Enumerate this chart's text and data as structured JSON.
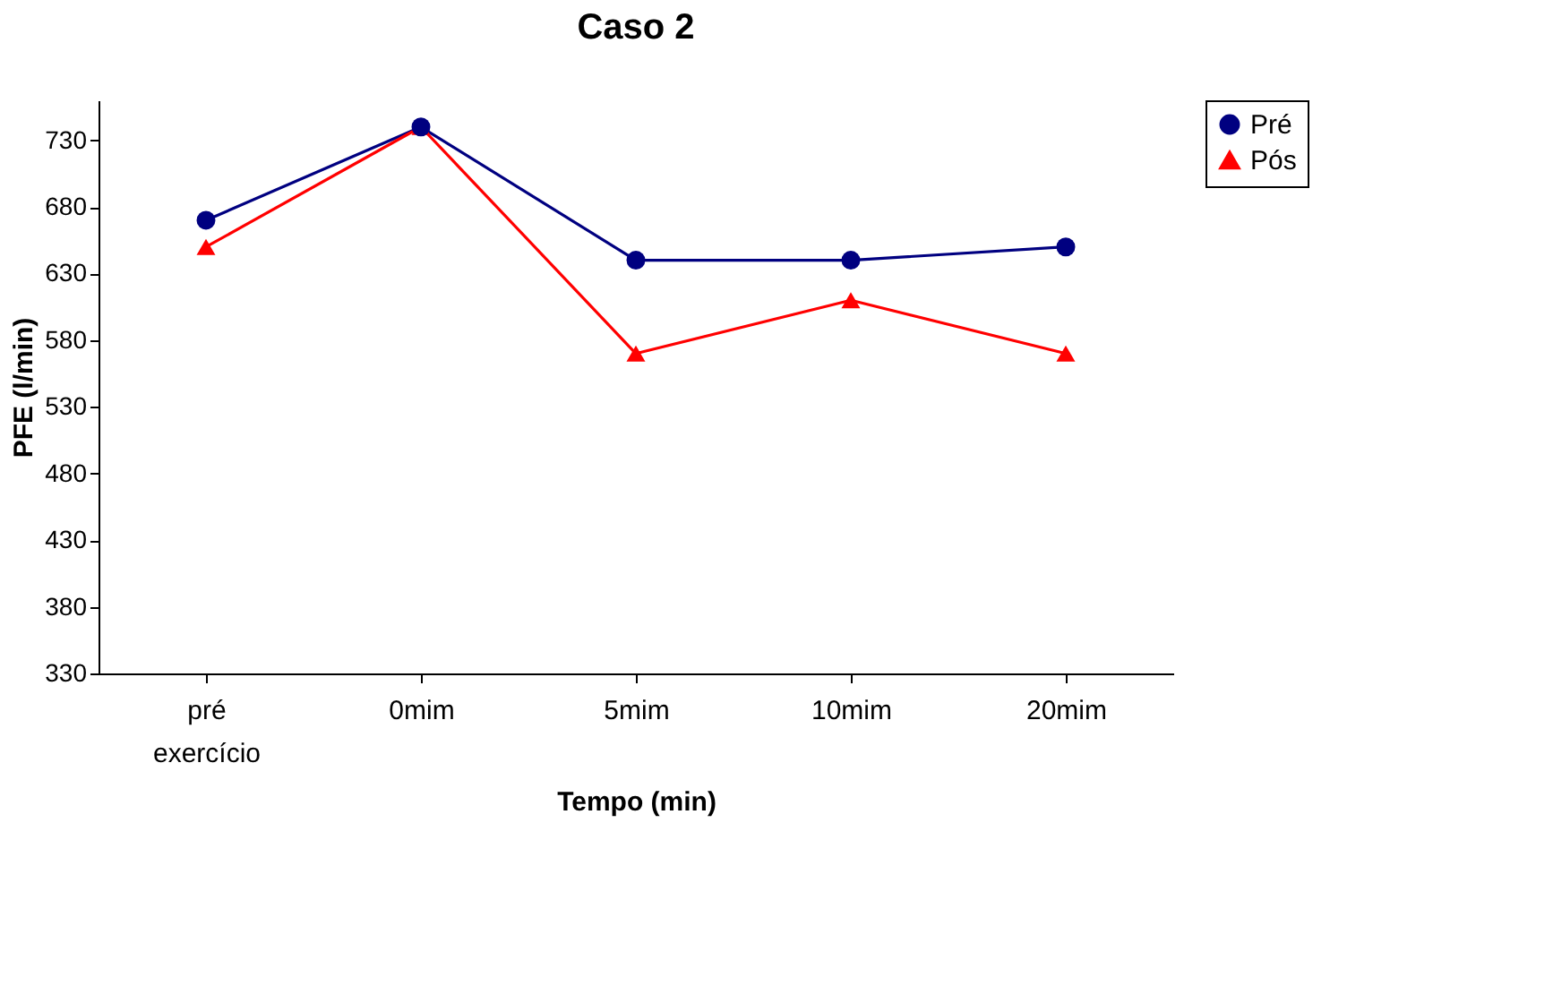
{
  "chart_data": {
    "type": "line",
    "title": "Caso 2",
    "xlabel": "Tempo (min)",
    "ylabel": "PFE (l/min)",
    "categories": [
      "pré exercício",
      "0mim",
      "5mim",
      "10mim",
      "20mim"
    ],
    "series": [
      {
        "name": "Pré",
        "color": "#000080",
        "marker": "circle",
        "values": [
          670,
          740,
          640,
          640,
          650
        ]
      },
      {
        "name": "Pós",
        "color": "#ff0000",
        "marker": "triangle",
        "values": [
          650,
          740,
          570,
          610,
          570
        ]
      }
    ],
    "ylim": [
      330,
      760
    ],
    "yticks": [
      330,
      380,
      430,
      480,
      530,
      580,
      630,
      680,
      730
    ],
    "grid": false,
    "legend": "right",
    "line_style": "solid"
  }
}
